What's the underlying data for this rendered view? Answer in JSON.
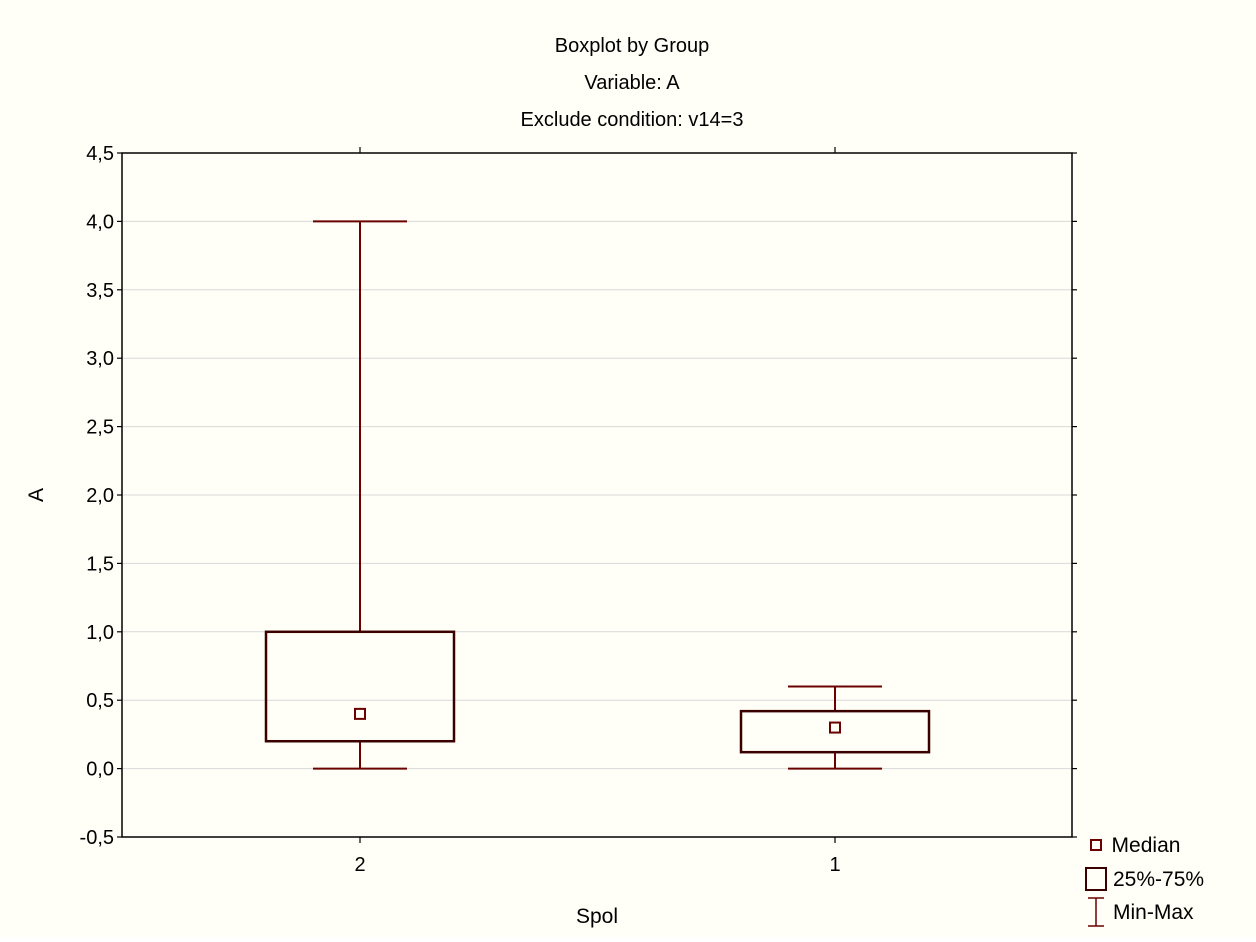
{
  "colors": {
    "box": "#6b0000",
    "background": "#fffff7",
    "grid": "#d9d9d9",
    "axis": "#000000"
  },
  "chart_data": {
    "type": "boxplot",
    "title_lines": [
      "Boxplot by Group",
      "Variable: A",
      "Exclude condition: v14=3"
    ],
    "xlabel": "Spol",
    "ylabel": "A",
    "ylim": [
      -0.5,
      4.5
    ],
    "yticks": [
      -0.5,
      0.0,
      0.5,
      1.0,
      1.5,
      2.0,
      2.5,
      3.0,
      3.5,
      4.0,
      4.5
    ],
    "ytick_labels": [
      "-0,5",
      "0,0",
      "0,5",
      "1,0",
      "1,5",
      "2,0",
      "2,5",
      "3,0",
      "3,5",
      "4,0",
      "4,5"
    ],
    "grid": true,
    "categories": [
      "2",
      "1"
    ],
    "groups": [
      {
        "category": "2",
        "min": 0.0,
        "q1": 0.2,
        "median": 0.4,
        "q3": 1.0,
        "max": 4.0
      },
      {
        "category": "1",
        "min": 0.0,
        "q1": 0.12,
        "median": 0.3,
        "q3": 0.42,
        "max": 0.6
      }
    ],
    "legend": {
      "position": "bottom-right",
      "entries": [
        {
          "symbol": "median",
          "label": "Median"
        },
        {
          "symbol": "box",
          "label": "25%-75%"
        },
        {
          "symbol": "whisker",
          "label": "Min-Max"
        }
      ]
    }
  }
}
